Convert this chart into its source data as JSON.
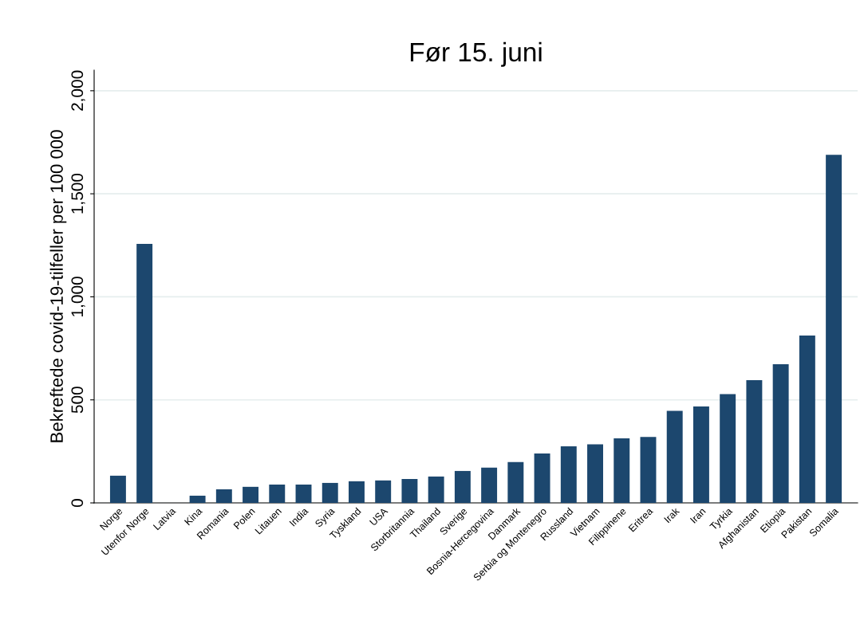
{
  "chart_data": {
    "type": "bar",
    "title": "Før 15. juni",
    "ylabel": "Bekreftede covid-19-tilfeller per 100 000",
    "categories": [
      "Norge",
      "Utenfor Norge",
      "Latvia",
      "Kina",
      "Romania",
      "Polen",
      "Litauen",
      "India",
      "Syria",
      "Tyskland",
      "USA",
      "Storbritannia",
      "Thailand",
      "Sverige",
      "Bosnia-Hercegovina",
      "Danmark",
      "Serbia og Montenegro",
      "Russland",
      "Vietnam",
      "Filippinene",
      "Eritrea",
      "Irak",
      "Iran",
      "Tyrkia",
      "Afghanistan",
      "Etiopia",
      "Pakistan",
      "Somalia"
    ],
    "values": [
      132,
      1257,
      0,
      35,
      66,
      78,
      89,
      89,
      97,
      105,
      109,
      116,
      128,
      155,
      171,
      198,
      240,
      275,
      284,
      313,
      320,
      447,
      468,
      528,
      596,
      673,
      812,
      1689
    ],
    "color": "#1c476e",
    "ylim": [
      0,
      2100
    ],
    "yticks": [
      0,
      {
        "value": 500,
        "label": "500"
      },
      {
        "value": 1000,
        "label": "1,000"
      },
      {
        "value": 1500,
        "label": "1,500"
      },
      {
        "value": 2000,
        "label": "2,000"
      }
    ],
    "grid": "y"
  }
}
